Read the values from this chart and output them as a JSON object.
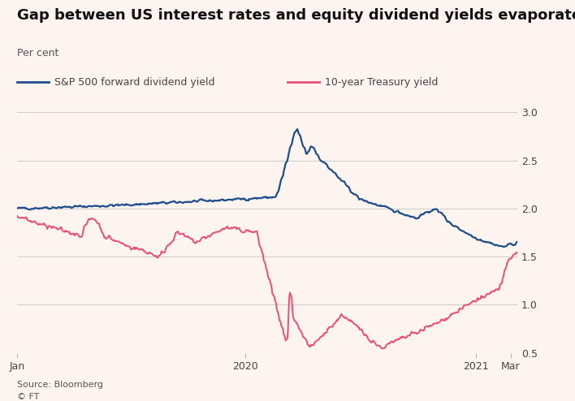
{
  "title": "Gap between US interest rates and equity dividend yields evaporates",
  "subtitle": "Per cent",
  "source": "Source: Bloomberg",
  "footer": "© FT",
  "legend": [
    {
      "label": "S&P 500 forward dividend yield",
      "color": "#1f4e8c",
      "lw": 1.6
    },
    {
      "label": "10-year Treasury yield",
      "color": "#e8507a",
      "lw": 1.4
    }
  ],
  "background_color": "#fdf3ef",
  "ylim": [
    0.5,
    3.0
  ],
  "yticks": [
    0.5,
    1.0,
    1.5,
    2.0,
    2.5,
    3.0
  ],
  "xtick_labels": [
    "Jan",
    "2020",
    "2021",
    "Mar"
  ],
  "title_fontsize": 13,
  "subtitle_fontsize": 9,
  "legend_fontsize": 9,
  "tick_fontsize": 9
}
